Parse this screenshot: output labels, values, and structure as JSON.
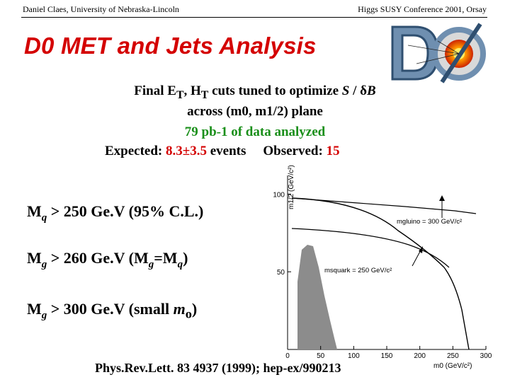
{
  "header": {
    "left": "Daniel Claes, University of Nebraska-Lincoln",
    "right": "Higgs SUSY Conference 2001, Orsay"
  },
  "title": "D0 MET and Jets Analysis",
  "logo": {
    "icon": "d0-logo-icon"
  },
  "body": {
    "line1_pre": "Final E",
    "line1_sub1": "T",
    "line1_mid": ", H",
    "line1_sub2": "T",
    "line1_post": " cuts tuned to optimize ",
    "line1_s": "S",
    "line1_slash": " / ",
    "line1_delta": "δ",
    "line1_b": "B",
    "line2": "across (m0, m1/2) plane",
    "line3": "79 pb-1 of data analyzed",
    "expected_label": "Expected: ",
    "expected_value": "8.3±3.5",
    "expected_unit": " events",
    "observed_label": "Observed: ",
    "observed_value": "15"
  },
  "limits": [
    {
      "m": "M",
      "sub": "q",
      "text": " > 250 Ge.V (95% C.L.)"
    },
    {
      "m": "M",
      "sub": "g",
      "text": " > 260 Ge.V (M",
      "sub2": "g",
      "text2": "=M",
      "sub3": "q",
      "text3": ")"
    },
    {
      "m": "M",
      "sub": "g",
      "text": " > 300 Ge.V (small ",
      "italic": "m",
      "italic_sub": "o",
      "text2": ")"
    }
  ],
  "plot": {
    "ylabel": "m1/2 (GeV/c²)",
    "xlabel": "m0 (GeV/c²)",
    "xticks": [
      "0",
      "50",
      "100",
      "150",
      "200",
      "250",
      "300"
    ],
    "yticks": [
      "50",
      "100"
    ],
    "label_gluino": "mgluino = 300 GeV/c²",
    "label_squark": "msquark = 250 GeV/c²",
    "xlim": [
      0,
      300
    ],
    "ylim": [
      0,
      112
    ]
  },
  "reference": "Phys.Rev.Lett. 83 4937 (1999); hep-ex/990213"
}
